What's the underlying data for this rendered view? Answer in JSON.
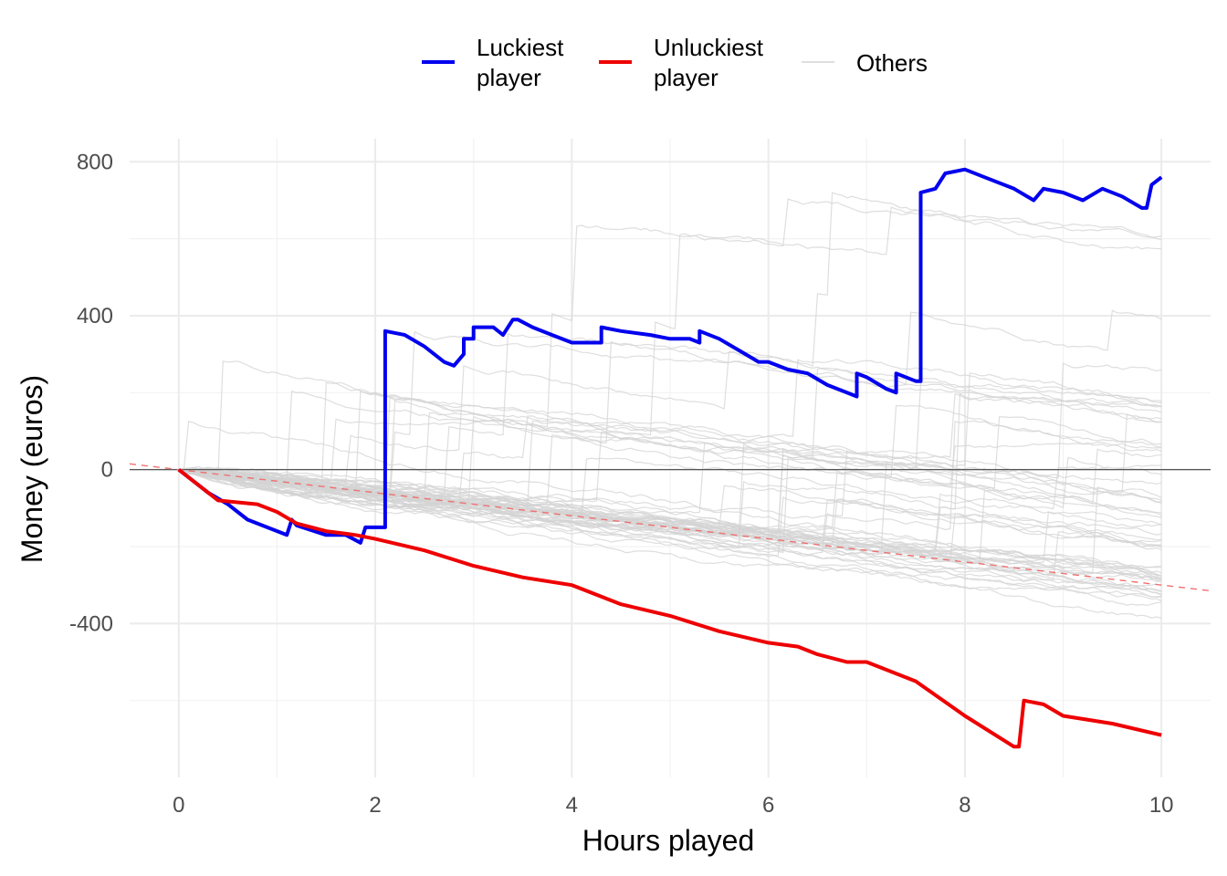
{
  "chart_data": {
    "type": "line",
    "xlabel": "Hours played",
    "ylabel": "Money (euros)",
    "xlim": [
      -0.5,
      10.5
    ],
    "ylim": [
      -800,
      860
    ],
    "x_ticks": [
      0,
      2,
      4,
      6,
      8,
      10
    ],
    "y_ticks": [
      -400,
      0,
      400,
      800
    ],
    "grid": true,
    "legend_position": "top",
    "colors": {
      "luckiest": "#0000ee",
      "unluckiest": "#ee0000",
      "others": "#d3d3d3",
      "expected": "#f07070",
      "zero": "#555555"
    },
    "legend": [
      {
        "key": "luckiest",
        "lines": [
          "Luckiest",
          "player"
        ]
      },
      {
        "key": "unluckiest",
        "lines": [
          "Unluckiest",
          "player"
        ]
      },
      {
        "key": "others",
        "lines": [
          "Others"
        ]
      }
    ],
    "reference_lines": {
      "zero": 0,
      "expected_slope_per_hour": -30
    },
    "series": [
      {
        "key": "luckiest",
        "x": [
          0,
          0.3,
          0.5,
          0.7,
          0.9,
          1.1,
          1.15,
          1.2,
          1.5,
          1.7,
          1.85,
          1.9,
          2.05,
          2.1,
          2.1,
          2.3,
          2.5,
          2.7,
          2.8,
          2.9,
          2.9,
          3.0,
          3.0,
          3.2,
          3.3,
          3.4,
          3.45,
          3.6,
          3.8,
          4.0,
          4.2,
          4.3,
          4.3,
          4.5,
          4.8,
          5.0,
          5.2,
          5.3,
          5.3,
          5.5,
          5.7,
          5.9,
          6.0,
          6.2,
          6.4,
          6.6,
          6.8,
          6.9,
          6.9,
          7.0,
          7.2,
          7.3,
          7.3,
          7.5,
          7.55,
          7.55,
          7.7,
          7.8,
          8.0,
          8.2,
          8.5,
          8.7,
          8.8,
          9.0,
          9.2,
          9.4,
          9.6,
          9.8,
          9.85,
          9.9,
          10.0
        ],
        "y": [
          0,
          -60,
          -90,
          -130,
          -150,
          -170,
          -130,
          -145,
          -170,
          -170,
          -190,
          -150,
          -150,
          -150,
          360,
          350,
          320,
          280,
          270,
          300,
          340,
          340,
          370,
          370,
          350,
          390,
          390,
          370,
          350,
          330,
          330,
          330,
          370,
          360,
          350,
          340,
          340,
          330,
          360,
          340,
          310,
          280,
          280,
          260,
          250,
          220,
          200,
          190,
          250,
          240,
          210,
          200,
          250,
          230,
          230,
          720,
          730,
          770,
          780,
          760,
          730,
          700,
          730,
          720,
          700,
          730,
          710,
          680,
          680,
          740,
          760
        ]
      },
      {
        "key": "unluckiest",
        "x": [
          0,
          0.4,
          0.8,
          1.0,
          1.2,
          1.5,
          1.8,
          2.0,
          2.5,
          3.0,
          3.5,
          4.0,
          4.5,
          5.0,
          5.5,
          6.0,
          6.3,
          6.5,
          6.8,
          7.0,
          7.5,
          8.0,
          8.5,
          8.55,
          8.6,
          8.8,
          9.0,
          9.5,
          10.0
        ],
        "y": [
          0,
          -80,
          -90,
          -110,
          -140,
          -160,
          -170,
          -180,
          -210,
          -250,
          -280,
          -300,
          -350,
          -380,
          -420,
          -450,
          -460,
          -480,
          -500,
          -500,
          -550,
          -640,
          -720,
          -720,
          -600,
          -610,
          -640,
          -660,
          -690
        ]
      }
    ]
  }
}
